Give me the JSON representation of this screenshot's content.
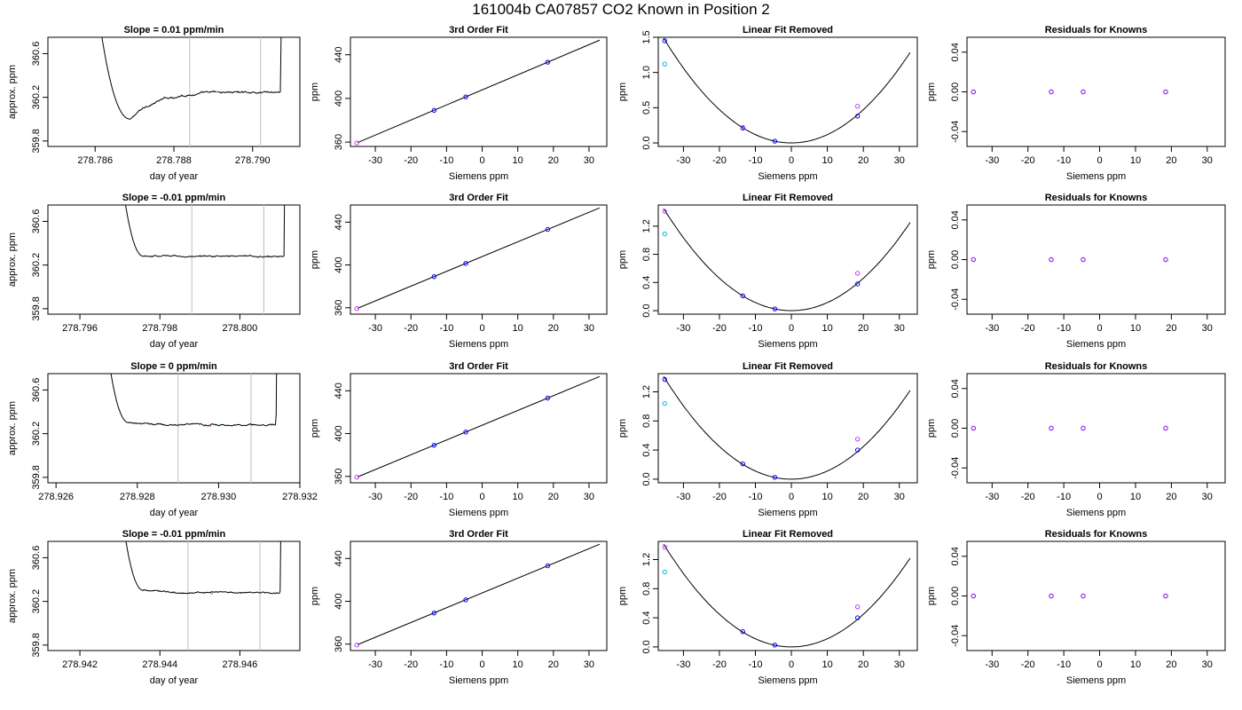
{
  "figure": {
    "title": "161004b     CA07857   CO2 Known in Position  2"
  },
  "colors": {
    "line": "#000000",
    "marker_blue": "#0000ff",
    "marker_cyan": "#00bbdd",
    "marker_magenta": "#cc33ff",
    "marker_purple": "#7700ee",
    "cursor_gray": "#c8c8c8"
  },
  "chart_data": [
    {
      "type": "line",
      "panel": "trace",
      "row": 1,
      "title": "Slope =  0.01  ppm/min",
      "xlabel": "day of year",
      "ylabel": "approx. ppm",
      "xlim": [
        278.7848,
        278.7912
      ],
      "ylim": [
        359.75,
        360.75
      ],
      "xticks": [
        278.786,
        278.788,
        278.79
      ],
      "xtick_labels": [
        "278.786",
        "278.788",
        "278.790"
      ],
      "yticks": [
        359.8,
        360.2,
        360.6
      ],
      "ytick_labels": [
        "359.8",
        "360.2",
        "360.6"
      ],
      "cursors": [
        278.7884,
        278.7902
      ],
      "shape": {
        "t_start": 278.786,
        "t_min": 278.7869,
        "y_min": 360.0,
        "t_end": 278.7907,
        "y_level": 360.25,
        "drift": 0.01,
        "noise": 0.012
      },
      "marks": [
        {
          "x": 278.7891,
          "y": 360.25,
          "color": "#ff8888"
        }
      ]
    },
    {
      "type": "line",
      "panel": "fit",
      "row": 1,
      "title": "3rd Order Fit",
      "xlabel": "Siemens ppm",
      "ylabel": "ppm",
      "xlim": [
        -37,
        35
      ],
      "ylim": [
        356,
        456
      ],
      "xticks": [
        -30,
        -20,
        -10,
        0,
        10,
        20,
        30
      ],
      "xtick_labels": [
        "-30",
        "-20",
        "-10",
        "0",
        "10",
        "20",
        "30"
      ],
      "yticks": [
        360,
        400,
        440
      ],
      "ytick_labels": [
        "360",
        "400",
        "440"
      ],
      "line": {
        "x0": -35,
        "x1": 33,
        "slope": 1.38,
        "intercept": 407.8
      },
      "points": [
        {
          "x": -35.2,
          "y": 359.2,
          "color": "#cc33ff"
        },
        {
          "x": -13.5,
          "y": 389.1,
          "color": "#0000ff"
        },
        {
          "x": -4.6,
          "y": 401.4,
          "color": "#0000ff"
        },
        {
          "x": 18.4,
          "y": 433.2,
          "color": "#0000ff"
        }
      ]
    },
    {
      "type": "line",
      "panel": "quad",
      "row": 1,
      "title": "Linear Fit Removed",
      "xlabel": "Siemens ppm",
      "ylabel": "ppm",
      "xlim": [
        -37,
        35
      ],
      "ylim": [
        -0.05,
        1.5
      ],
      "xticks": [
        -30,
        -20,
        -10,
        0,
        10,
        20,
        30
      ],
      "xtick_labels": [
        "-30",
        "-20",
        "-10",
        "0",
        "10",
        "20",
        "30"
      ],
      "yticks": [
        0.0,
        0.5,
        1.0,
        1.5
      ],
      "ytick_labels": [
        "0.0",
        "0.5",
        "1.0",
        "1.5"
      ],
      "curve": {
        "a": 0.00118,
        "x0": 0,
        "y0": 0,
        "xmin": -35.5,
        "xmax": 33
      },
      "points": [
        {
          "x": -35.2,
          "y": 1.45,
          "color": "#0000ff"
        },
        {
          "x": -35.2,
          "y": 1.12,
          "color": "#00bbdd"
        },
        {
          "x": -13.5,
          "y": 0.21,
          "color": "#0000ff"
        },
        {
          "x": -13.5,
          "y": 0.22,
          "color": "#cc33ff"
        },
        {
          "x": -4.6,
          "y": 0.025,
          "color": "#0000ff"
        },
        {
          "x": 18.4,
          "y": 0.38,
          "color": "#0000ff"
        },
        {
          "x": 18.4,
          "y": 0.52,
          "color": "#cc33ff"
        }
      ]
    },
    {
      "type": "scatter",
      "panel": "resid",
      "row": 1,
      "title": "Residuals for Knowns",
      "xlabel": "Siemens ppm",
      "ylabel": "ppm",
      "xlim": [
        -37,
        35
      ],
      "ylim": [
        -0.055,
        0.055
      ],
      "xticks": [
        -30,
        -20,
        -10,
        0,
        10,
        20,
        30
      ],
      "xtick_labels": [
        "-30",
        "-20",
        "-10",
        "0",
        "10",
        "20",
        "30"
      ],
      "yticks": [
        -0.04,
        0.0,
        0.04
      ],
      "ytick_labels": [
        "-0.04",
        "0.00",
        "0.04"
      ],
      "points": [
        {
          "x": -35.2,
          "y": 0.0,
          "color": "#7700ee"
        },
        {
          "x": -13.5,
          "y": 0.0,
          "color": "#7700ee"
        },
        {
          "x": -4.6,
          "y": 0.0,
          "color": "#7700ee"
        },
        {
          "x": 18.4,
          "y": 0.0,
          "color": "#7700ee"
        }
      ]
    },
    {
      "type": "line",
      "panel": "trace",
      "row": 2,
      "title": "Slope =  -0.01  ppm/min",
      "xlabel": "day of year",
      "ylabel": "approx. ppm",
      "xlim": [
        278.7952,
        278.8015
      ],
      "ylim": [
        359.75,
        360.75
      ],
      "xticks": [
        278.796,
        278.798,
        278.8
      ],
      "xtick_labels": [
        "278.796",
        "278.798",
        "278.800"
      ],
      "yticks": [
        359.8,
        360.2,
        360.6
      ],
      "ytick_labels": [
        "359.8",
        "360.2",
        "360.6"
      ],
      "cursors": [
        278.7988,
        278.8006
      ],
      "shape": {
        "t_start": 278.7969,
        "t_min": 278.7976,
        "y_min": 360.28,
        "t_end": 278.8011,
        "y_level": 360.28,
        "drift": -0.01,
        "noise": 0.008
      },
      "marks": []
    },
    {
      "type": "line",
      "panel": "fit",
      "row": 2,
      "title": "3rd Order Fit",
      "xlabel": "Siemens ppm",
      "ylabel": "ppm",
      "xlim": [
        -37,
        35
      ],
      "ylim": [
        354,
        456
      ],
      "xticks": [
        -30,
        -20,
        -10,
        0,
        10,
        20,
        30
      ],
      "xtick_labels": [
        "-30",
        "-20",
        "-10",
        "0",
        "10",
        "20",
        "30"
      ],
      "yticks": [
        360,
        400,
        440
      ],
      "ytick_labels": [
        "360",
        "400",
        "440"
      ],
      "line": {
        "x0": -35,
        "x1": 33,
        "slope": 1.38,
        "intercept": 407.8
      },
      "points": [
        {
          "x": -35.2,
          "y": 359.2,
          "color": "#cc33ff"
        },
        {
          "x": -13.5,
          "y": 389.1,
          "color": "#0000ff"
        },
        {
          "x": -4.6,
          "y": 401.4,
          "color": "#0000ff"
        },
        {
          "x": 18.4,
          "y": 433.2,
          "color": "#0000ff"
        }
      ]
    },
    {
      "type": "line",
      "panel": "quad",
      "row": 2,
      "title": "Linear Fit Removed",
      "xlabel": "Siemens ppm",
      "ylabel": "ppm",
      "xlim": [
        -37,
        35
      ],
      "ylim": [
        -0.05,
        1.5
      ],
      "xticks": [
        -30,
        -20,
        -10,
        0,
        10,
        20,
        30
      ],
      "xtick_labels": [
        "-30",
        "-20",
        "-10",
        "0",
        "10",
        "20",
        "30"
      ],
      "yticks": [
        0.0,
        0.4,
        0.8,
        1.2
      ],
      "ytick_labels": [
        "0.0",
        "0.4",
        "0.8",
        "1.2"
      ],
      "curve": {
        "a": 0.00115,
        "x0": 0,
        "y0": 0,
        "xmin": -35.5,
        "xmax": 33
      },
      "points": [
        {
          "x": -35.2,
          "y": 1.41,
          "color": "#cc33ff"
        },
        {
          "x": -35.2,
          "y": 1.09,
          "color": "#00bbdd"
        },
        {
          "x": -13.5,
          "y": 0.21,
          "color": "#0000ff"
        },
        {
          "x": -4.6,
          "y": 0.025,
          "color": "#0000ff"
        },
        {
          "x": 18.4,
          "y": 0.38,
          "color": "#0000ff"
        },
        {
          "x": 18.4,
          "y": 0.53,
          "color": "#cc33ff"
        }
      ]
    },
    {
      "type": "scatter",
      "panel": "resid",
      "row": 2,
      "title": "Residuals for Knowns",
      "xlabel": "Siemens ppm",
      "ylabel": "ppm",
      "xlim": [
        -37,
        35
      ],
      "ylim": [
        -0.055,
        0.055
      ],
      "xticks": [
        -30,
        -20,
        -10,
        0,
        10,
        20,
        30
      ],
      "xtick_labels": [
        "-30",
        "-20",
        "-10",
        "0",
        "10",
        "20",
        "30"
      ],
      "yticks": [
        -0.04,
        0.0,
        0.04
      ],
      "ytick_labels": [
        "-0.04",
        "0.00",
        "0.04"
      ],
      "points": [
        {
          "x": -35.2,
          "y": 0.0,
          "color": "#7700ee"
        },
        {
          "x": -13.5,
          "y": 0.0,
          "color": "#7700ee"
        },
        {
          "x": -4.6,
          "y": 0.0,
          "color": "#7700ee"
        },
        {
          "x": 18.4,
          "y": 0.0,
          "color": "#7700ee"
        }
      ]
    },
    {
      "type": "line",
      "panel": "trace",
      "row": 3,
      "title": "Slope =  0  ppm/min",
      "xlabel": "day of year",
      "ylabel": "approx. ppm",
      "xlim": [
        278.9258,
        278.932
      ],
      "ylim": [
        359.75,
        360.75
      ],
      "xticks": [
        278.926,
        278.928,
        278.93,
        278.932
      ],
      "xtick_labels": [
        "278.926",
        "278.928",
        "278.930",
        "278.932"
      ],
      "yticks": [
        359.8,
        360.2,
        360.6
      ],
      "ytick_labels": [
        "359.8",
        "360.2",
        "360.6"
      ],
      "cursors": [
        278.929,
        278.9308
      ],
      "shape": {
        "t_start": 278.9271,
        "t_min": 278.9278,
        "y_min": 360.3,
        "t_end": 278.9314,
        "y_level": 360.28,
        "drift": 0,
        "noise": 0.009
      },
      "marks": [
        {
          "x": 278.9298,
          "y": 360.27,
          "color": "#ff8888"
        }
      ]
    },
    {
      "type": "line",
      "panel": "fit",
      "row": 3,
      "title": "3rd Order Fit",
      "xlabel": "Siemens ppm",
      "ylabel": "ppm",
      "xlim": [
        -37,
        35
      ],
      "ylim": [
        354,
        456
      ],
      "xticks": [
        -30,
        -20,
        -10,
        0,
        10,
        20,
        30
      ],
      "xtick_labels": [
        "-30",
        "-20",
        "-10",
        "0",
        "10",
        "20",
        "30"
      ],
      "yticks": [
        360,
        400,
        440
      ],
      "ytick_labels": [
        "360",
        "400",
        "440"
      ],
      "line": {
        "x0": -35,
        "x1": 33,
        "slope": 1.38,
        "intercept": 407.8
      },
      "points": [
        {
          "x": -35.2,
          "y": 359.2,
          "color": "#cc33ff"
        },
        {
          "x": -13.5,
          "y": 389.1,
          "color": "#0000ff"
        },
        {
          "x": -4.6,
          "y": 401.4,
          "color": "#0000ff"
        },
        {
          "x": 18.4,
          "y": 433.2,
          "color": "#0000ff"
        }
      ]
    },
    {
      "type": "line",
      "panel": "quad",
      "row": 3,
      "title": "Linear Fit Removed",
      "xlabel": "Siemens ppm",
      "ylabel": "ppm",
      "xlim": [
        -37,
        35
      ],
      "ylim": [
        -0.05,
        1.45
      ],
      "xticks": [
        -30,
        -20,
        -10,
        0,
        10,
        20,
        30
      ],
      "xtick_labels": [
        "-30",
        "-20",
        "-10",
        "0",
        "10",
        "20",
        "30"
      ],
      "yticks": [
        0.0,
        0.4,
        0.8,
        1.2
      ],
      "ytick_labels": [
        "0.0",
        "0.4",
        "0.8",
        "1.2"
      ],
      "curve": {
        "a": 0.00112,
        "x0": 0,
        "y0": 0,
        "xmin": -35.5,
        "xmax": 33
      },
      "points": [
        {
          "x": -35.2,
          "y": 1.37,
          "color": "#0000ff"
        },
        {
          "x": -35.2,
          "y": 1.04,
          "color": "#00bbdd"
        },
        {
          "x": -13.5,
          "y": 0.21,
          "color": "#0000ff"
        },
        {
          "x": -4.6,
          "y": 0.025,
          "color": "#0000ff"
        },
        {
          "x": 18.4,
          "y": 0.4,
          "color": "#0000ff"
        },
        {
          "x": 18.4,
          "y": 0.55,
          "color": "#cc33ff"
        }
      ]
    },
    {
      "type": "scatter",
      "panel": "resid",
      "row": 3,
      "title": "Residuals for Knowns",
      "xlabel": "Siemens ppm",
      "ylabel": "ppm",
      "xlim": [
        -37,
        35
      ],
      "ylim": [
        -0.055,
        0.055
      ],
      "xticks": [
        -30,
        -20,
        -10,
        0,
        10,
        20,
        30
      ],
      "xtick_labels": [
        "-30",
        "-20",
        "-10",
        "0",
        "10",
        "20",
        "30"
      ],
      "yticks": [
        -0.04,
        0.0,
        0.04
      ],
      "ytick_labels": [
        "-0.04",
        "0.00",
        "0.04"
      ],
      "points": [
        {
          "x": -35.2,
          "y": 0.0,
          "color": "#7700ee"
        },
        {
          "x": -13.5,
          "y": 0.0,
          "color": "#7700ee"
        },
        {
          "x": -4.6,
          "y": 0.0,
          "color": "#7700ee"
        },
        {
          "x": 18.4,
          "y": 0.0,
          "color": "#7700ee"
        }
      ]
    },
    {
      "type": "line",
      "panel": "trace",
      "row": 4,
      "title": "Slope =  -0.01  ppm/min",
      "xlabel": "day of year",
      "ylabel": "approx. ppm",
      "xlim": [
        278.9412,
        278.9475
      ],
      "ylim": [
        359.75,
        360.75
      ],
      "xticks": [
        278.942,
        278.944,
        278.946
      ],
      "xtick_labels": [
        "278.942",
        "278.944",
        "278.946"
      ],
      "yticks": [
        359.8,
        360.2,
        360.6
      ],
      "ytick_labels": [
        "359.8",
        "360.2",
        "360.6"
      ],
      "cursors": [
        278.9447,
        278.9465
      ],
      "shape": {
        "t_start": 278.9429,
        "t_min": 278.9436,
        "y_min": 360.3,
        "t_end": 278.947,
        "y_level": 360.28,
        "drift": -0.01,
        "noise": 0.009
      },
      "marks": [
        {
          "x": 278.9453,
          "y": 360.27,
          "color": "#ff8888"
        }
      ]
    },
    {
      "type": "line",
      "panel": "fit",
      "row": 4,
      "title": "3rd Order Fit",
      "xlabel": "Siemens ppm",
      "ylabel": "ppm",
      "xlim": [
        -37,
        35
      ],
      "ylim": [
        354,
        456
      ],
      "xticks": [
        -30,
        -20,
        -10,
        0,
        10,
        20,
        30
      ],
      "xtick_labels": [
        "-30",
        "-20",
        "-10",
        "0",
        "10",
        "20",
        "30"
      ],
      "yticks": [
        360,
        400,
        440
      ],
      "ytick_labels": [
        "360",
        "400",
        "440"
      ],
      "line": {
        "x0": -35,
        "x1": 33,
        "slope": 1.38,
        "intercept": 407.8
      },
      "points": [
        {
          "x": -35.2,
          "y": 359.2,
          "color": "#cc33ff"
        },
        {
          "x": -13.5,
          "y": 389.1,
          "color": "#0000ff"
        },
        {
          "x": -4.6,
          "y": 401.4,
          "color": "#0000ff"
        },
        {
          "x": 18.4,
          "y": 433.2,
          "color": "#0000ff"
        }
      ]
    },
    {
      "type": "line",
      "panel": "quad",
      "row": 4,
      "title": "Linear Fit Removed",
      "xlabel": "Siemens ppm",
      "ylabel": "ppm",
      "xlim": [
        -37,
        35
      ],
      "ylim": [
        -0.05,
        1.45
      ],
      "xticks": [
        -30,
        -20,
        -10,
        0,
        10,
        20,
        30
      ],
      "xtick_labels": [
        "-30",
        "-20",
        "-10",
        "0",
        "10",
        "20",
        "30"
      ],
      "yticks": [
        0.0,
        0.4,
        0.8,
        1.2
      ],
      "ytick_labels": [
        "0.0",
        "0.4",
        "0.8",
        "1.2"
      ],
      "curve": {
        "a": 0.00112,
        "x0": 0,
        "y0": 0,
        "xmin": -35.5,
        "xmax": 33
      },
      "points": [
        {
          "x": -35.2,
          "y": 1.37,
          "color": "#cc33ff"
        },
        {
          "x": -35.2,
          "y": 1.03,
          "color": "#00bbdd"
        },
        {
          "x": -13.5,
          "y": 0.21,
          "color": "#0000ff"
        },
        {
          "x": -4.6,
          "y": 0.025,
          "color": "#0000ff"
        },
        {
          "x": 18.4,
          "y": 0.4,
          "color": "#0000ff"
        },
        {
          "x": 18.4,
          "y": 0.55,
          "color": "#cc33ff"
        }
      ]
    },
    {
      "type": "scatter",
      "panel": "resid",
      "row": 4,
      "title": "Residuals for Knowns",
      "xlabel": "Siemens ppm",
      "ylabel": "ppm",
      "xlim": [
        -37,
        35
      ],
      "ylim": [
        -0.055,
        0.055
      ],
      "xticks": [
        -30,
        -20,
        -10,
        0,
        10,
        20,
        30
      ],
      "xtick_labels": [
        "-30",
        "-20",
        "-10",
        "0",
        "10",
        "20",
        "30"
      ],
      "yticks": [
        -0.04,
        0.0,
        0.04
      ],
      "ytick_labels": [
        "-0.04",
        "0.00",
        "0.04"
      ],
      "points": [
        {
          "x": -35.2,
          "y": 0.0,
          "color": "#7700ee"
        },
        {
          "x": -13.5,
          "y": 0.0,
          "color": "#7700ee"
        },
        {
          "x": -4.6,
          "y": 0.0,
          "color": "#7700ee"
        },
        {
          "x": 18.4,
          "y": 0.0,
          "color": "#7700ee"
        }
      ]
    }
  ]
}
